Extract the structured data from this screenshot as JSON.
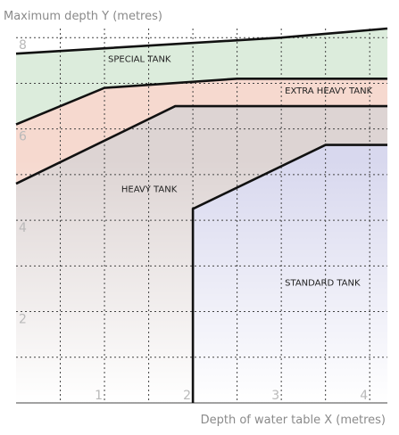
{
  "chart_data": {
    "type": "area",
    "ylabel": "Maximum depth Y (metres)",
    "xlabel": "Depth of water table X (metres)",
    "xlim": [
      0,
      4.2
    ],
    "ylim": [
      0,
      8.2
    ],
    "x_ticks": [
      1,
      2,
      3,
      4
    ],
    "y_ticks": [
      2,
      4,
      6,
      8
    ],
    "grid": true,
    "colors": {
      "special": "#dcecdc",
      "extra_heavy": "#f6d9cf",
      "heavy": "#ddd4d3",
      "standard": "#d8d8ee",
      "boundary": "#111111",
      "grid": "#444444",
      "tick": "#b9b9b9",
      "axis_title": "#8a8a8a"
    },
    "boundaries": [
      {
        "id": "special_upper",
        "points": [
          [
            0,
            7.65
          ],
          [
            3.0,
            8.0
          ],
          [
            4.2,
            8.2
          ]
        ]
      },
      {
        "id": "special_lower",
        "points": [
          [
            0,
            6.1
          ],
          [
            1.0,
            6.9
          ],
          [
            2.5,
            7.1
          ],
          [
            4.2,
            7.1
          ]
        ]
      },
      {
        "id": "extra_heavy_lower",
        "points": [
          [
            0,
            4.8
          ],
          [
            1.8,
            6.5
          ],
          [
            4.2,
            6.5
          ]
        ]
      },
      {
        "id": "heavy_lower",
        "points": [
          [
            2.0,
            0
          ],
          [
            2.0,
            4.25
          ],
          [
            3.5,
            5.65
          ],
          [
            4.2,
            5.65
          ]
        ]
      }
    ],
    "zones": [
      {
        "name": "SPECIAL TANK",
        "label_at": [
          1.0,
          7.55
        ]
      },
      {
        "name": "EXTRA HEAVY TANK",
        "label_at": [
          3.0,
          6.85
        ]
      },
      {
        "name": "HEAVY TANK",
        "label_at": [
          1.15,
          4.7
        ]
      },
      {
        "name": "STANDARD TANK",
        "label_at": [
          3.0,
          2.65
        ]
      }
    ]
  }
}
